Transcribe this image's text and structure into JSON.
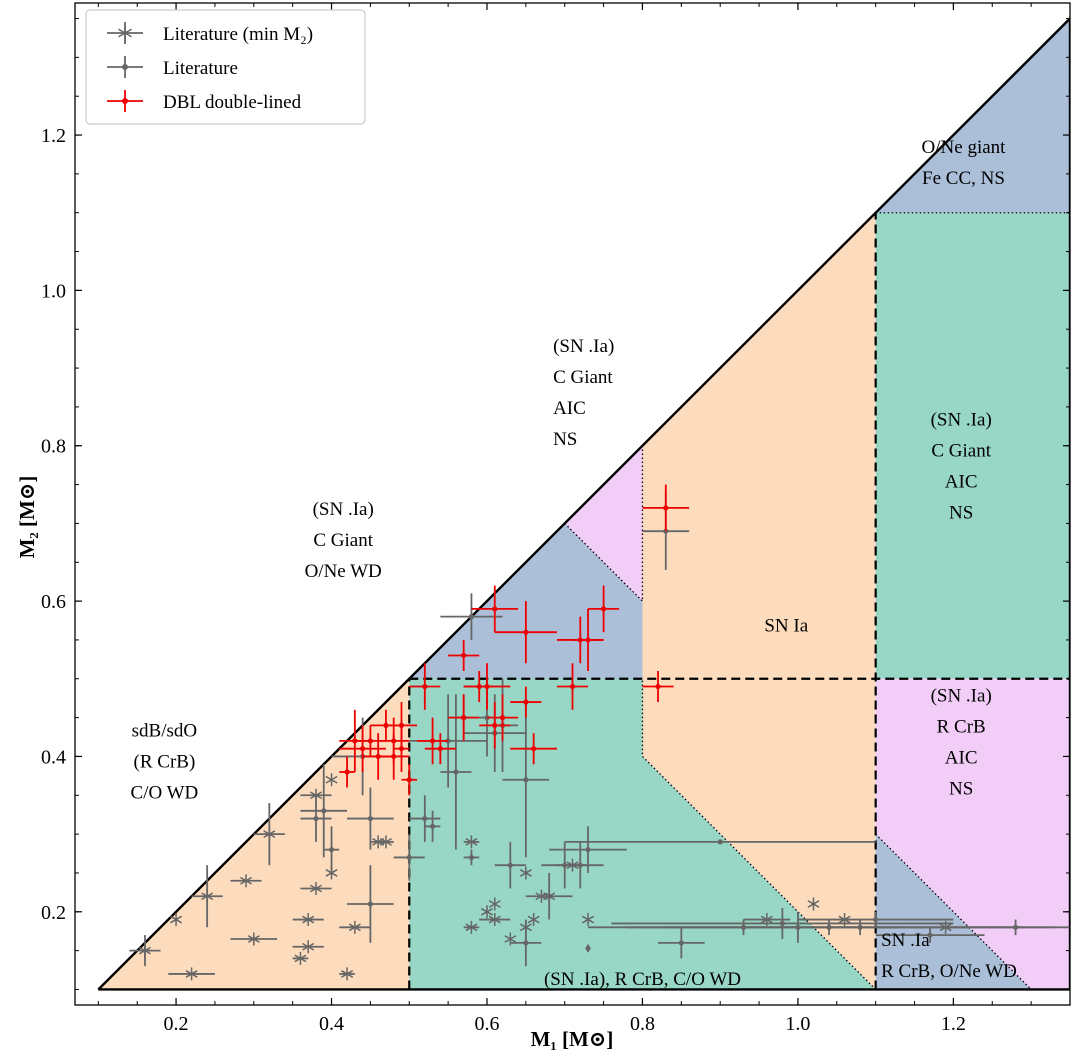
{
  "chart_data": {
    "type": "scatter",
    "xlabel": "M₁ [M⊙]",
    "ylabel": "M₂ [M⊙]",
    "xlim": [
      0.07,
      1.35
    ],
    "ylim": [
      0.08,
      1.37
    ],
    "xticks": [
      0.2,
      0.4,
      0.6,
      0.8,
      1.0,
      1.2
    ],
    "xtick_labels": [
      "0.2",
      "0.4",
      "0.6",
      "0.8",
      "1.0",
      "1.2"
    ],
    "yticks": [
      0.2,
      0.4,
      0.6,
      0.8,
      1.0,
      1.2
    ],
    "ytick_labels": [
      "0.2",
      "0.4",
      "0.6",
      "0.8",
      "1.0",
      "1.2"
    ],
    "grid": false,
    "legend_position": "top-left",
    "legend": [
      {
        "label": "Literature (min M₂)",
        "marker": "star",
        "color": "#666666"
      },
      {
        "label": "Literature",
        "marker": "dot",
        "color": "#666666"
      },
      {
        "label": "DBL double-lined",
        "marker": "dot",
        "color": "#ee0000"
      }
    ],
    "regions": [
      {
        "color": "#fcdcbd",
        "polygon": [
          [
            0.1,
            0.1
          ],
          [
            0.5,
            0.1
          ],
          [
            0.5,
            0.5
          ]
        ]
      },
      {
        "color": "#98d7c6",
        "polygon": [
          [
            0.5,
            0.1
          ],
          [
            1.1,
            0.1
          ],
          [
            0.8,
            0.4
          ],
          [
            0.8,
            0.6
          ],
          [
            0.7,
            0.7
          ],
          [
            0.5,
            0.5
          ]
        ]
      },
      {
        "color": "#fcdcbd",
        "polygon": [
          [
            1.1,
            0.1
          ],
          [
            0.8,
            0.4
          ],
          [
            0.8,
            0.8
          ],
          [
            1.1,
            1.1
          ]
        ]
      },
      {
        "color": "#98d7c6",
        "polygon": [
          [
            1.1,
            0.5
          ],
          [
            1.35,
            0.5
          ],
          [
            1.35,
            1.1
          ],
          [
            1.1,
            1.1
          ]
        ]
      },
      {
        "color": "#abbfd8",
        "polygon": [
          [
            1.1,
            1.1
          ],
          [
            1.35,
            1.1
          ],
          [
            1.35,
            1.35
          ]
        ]
      },
      {
        "color": "#f1cdf7",
        "polygon": [
          [
            1.1,
            0.3
          ],
          [
            1.1,
            0.5
          ],
          [
            1.35,
            0.5
          ],
          [
            1.35,
            0.1
          ],
          [
            1.3,
            0.1
          ]
        ]
      },
      {
        "color": "#abbfd8",
        "polygon": [
          [
            1.1,
            0.1
          ],
          [
            1.1,
            0.3
          ],
          [
            1.3,
            0.1
          ]
        ]
      },
      {
        "color": "#abbfd8",
        "polygon": [
          [
            0.5,
            0.5
          ],
          [
            0.7,
            0.7
          ],
          [
            0.8,
            0.6
          ],
          [
            0.8,
            0.5
          ]
        ]
      },
      {
        "color": "#f1cdf7",
        "polygon": [
          [
            0.7,
            0.7
          ],
          [
            0.8,
            0.8
          ],
          [
            0.8,
            0.6
          ]
        ]
      }
    ],
    "lines": [
      {
        "style": "solid",
        "points": [
          [
            0.1,
            0.1
          ],
          [
            1.35,
            1.35
          ]
        ]
      },
      {
        "style": "solid",
        "points": [
          [
            0.1,
            0.1
          ],
          [
            1.35,
            0.1
          ]
        ]
      },
      {
        "style": "solid",
        "points": [
          [
            1.35,
            0.1
          ],
          [
            1.35,
            1.35
          ]
        ]
      },
      {
        "style": "dashed",
        "points": [
          [
            0.5,
            0.1
          ],
          [
            0.5,
            0.5
          ]
        ]
      },
      {
        "style": "dashed",
        "points": [
          [
            1.1,
            0.1
          ],
          [
            1.1,
            1.1
          ]
        ]
      },
      {
        "style": "dashed",
        "points": [
          [
            0.5,
            0.5
          ],
          [
            1.35,
            0.5
          ]
        ]
      },
      {
        "style": "dotted",
        "points": [
          [
            0.7,
            0.7
          ],
          [
            0.8,
            0.6
          ],
          [
            0.8,
            0.8
          ]
        ]
      },
      {
        "style": "dotted",
        "points": [
          [
            1.1,
            0.1
          ],
          [
            0.8,
            0.4
          ],
          [
            0.8,
            0.5
          ]
        ]
      },
      {
        "style": "dotted",
        "points": [
          [
            1.1,
            1.1
          ],
          [
            1.35,
            1.1
          ]
        ]
      },
      {
        "style": "dotted",
        "points": [
          [
            1.1,
            0.3
          ],
          [
            1.3,
            0.1
          ]
        ]
      }
    ],
    "annotations": [
      {
        "x": 0.185,
        "y": 0.395,
        "align": "middle",
        "lines": [
          "sdB/sdO",
          "(R CrB)",
          "C/O WD"
        ]
      },
      {
        "x": 0.415,
        "y": 0.68,
        "align": "middle",
        "lines": [
          "(SN .Ia)",
          "C Giant",
          "O/Ne WD"
        ]
      },
      {
        "x": 0.685,
        "y": 0.87,
        "align": "start",
        "lines": [
          "(SN .Ia)",
          "C Giant",
          "AIC",
          "NS"
        ]
      },
      {
        "x": 0.985,
        "y": 0.57,
        "align": "middle",
        "lines": [
          "SN Ia"
        ]
      },
      {
        "x": 1.21,
        "y": 0.775,
        "align": "middle",
        "lines": [
          "(SN .Ia)",
          "C Giant",
          "AIC",
          "NS"
        ]
      },
      {
        "x": 1.213,
        "y": 1.166,
        "align": "middle",
        "lines": [
          "O/Ne giant",
          "Fe CC, NS"
        ]
      },
      {
        "x": 1.21,
        "y": 0.42,
        "align": "middle",
        "lines": [
          "(SN .Ia)",
          "R CrB",
          "AIC",
          "NS"
        ]
      },
      {
        "x": 0.8,
        "y": 0.115,
        "align": "middle",
        "lines": [
          "(SN .Ia), R CrB, C/O WD"
        ]
      },
      {
        "x": 1.107,
        "y": 0.145,
        "align": "start",
        "lines": [
          "SN .Ia",
          "R CrB, O/Ne WD"
        ]
      }
    ],
    "series": [
      {
        "name": "Literature (min M₂)",
        "marker": "star",
        "color": "#666666",
        "points": [
          {
            "x": 0.16,
            "y": 0.15,
            "xerr": 0.02,
            "yerr": 0.02
          },
          {
            "x": 0.2,
            "y": 0.19,
            "xerr": 0.0,
            "yerr": 0.0
          },
          {
            "x": 0.22,
            "y": 0.12,
            "xerr": 0.03,
            "yerr": 0.0
          },
          {
            "x": 0.24,
            "y": 0.22,
            "xerr": 0.02,
            "yerr": 0.04
          },
          {
            "x": 0.29,
            "y": 0.24,
            "xerr": 0.02,
            "yerr": 0.0
          },
          {
            "x": 0.3,
            "y": 0.165,
            "xerr": 0.03,
            "yerr": 0.0
          },
          {
            "x": 0.32,
            "y": 0.3,
            "xerr": 0.02,
            "yerr": 0.04
          },
          {
            "x": 0.36,
            "y": 0.14,
            "xerr": 0.01,
            "yerr": 0.0
          },
          {
            "x": 0.37,
            "y": 0.155,
            "xerr": 0.02,
            "yerr": 0.0
          },
          {
            "x": 0.37,
            "y": 0.19,
            "xerr": 0.02,
            "yerr": 0.0
          },
          {
            "x": 0.38,
            "y": 0.35,
            "xerr": 0.02,
            "yerr": 0.0
          },
          {
            "x": 0.38,
            "y": 0.23,
            "xerr": 0.02,
            "yerr": 0.0
          },
          {
            "x": 0.4,
            "y": 0.25,
            "xerr": 0.0,
            "yerr": 0.0
          },
          {
            "x": 0.4,
            "y": 0.37,
            "xerr": 0.0,
            "yerr": 0.0
          },
          {
            "x": 0.42,
            "y": 0.12,
            "xerr": 0.01,
            "yerr": 0.0
          },
          {
            "x": 0.43,
            "y": 0.18,
            "xerr": 0.02,
            "yerr": 0.0
          },
          {
            "x": 0.46,
            "y": 0.29,
            "xerr": 0.01,
            "yerr": 0.0
          },
          {
            "x": 0.47,
            "y": 0.29,
            "xerr": 0.01,
            "yerr": 0.0
          },
          {
            "x": 0.58,
            "y": 0.18,
            "xerr": 0.01,
            "yerr": 0.0
          },
          {
            "x": 0.58,
            "y": 0.29,
            "xerr": 0.01,
            "yerr": 0.0
          },
          {
            "x": 0.6,
            "y": 0.2,
            "xerr": 0.0,
            "yerr": 0.0
          },
          {
            "x": 0.61,
            "y": 0.19,
            "xerr": 0.02,
            "yerr": 0.0
          },
          {
            "x": 0.61,
            "y": 0.21,
            "xerr": 0.0,
            "yerr": 0.0
          },
          {
            "x": 0.63,
            "y": 0.165,
            "xerr": 0.0,
            "yerr": 0.0
          },
          {
            "x": 0.65,
            "y": 0.18,
            "xerr": 0.0,
            "yerr": 0.0
          },
          {
            "x": 0.65,
            "y": 0.25,
            "xerr": 0.0,
            "yerr": 0.0
          },
          {
            "x": 0.66,
            "y": 0.19,
            "xerr": 0.0,
            "yerr": 0.0
          },
          {
            "x": 0.67,
            "y": 0.22,
            "xerr": 0.0,
            "yerr": 0.0
          },
          {
            "x": 0.68,
            "y": 0.22,
            "xerr": 0.0,
            "yerr": 0.0
          },
          {
            "x": 0.71,
            "y": 0.26,
            "xerr": 0.0,
            "yerr": 0.0
          },
          {
            "x": 0.73,
            "y": 0.19,
            "xerr": 0.0,
            "yerr": 0.0
          },
          {
            "x": 0.96,
            "y": 0.19,
            "xerr": 0.03,
            "yerr": 0.0
          },
          {
            "x": 1.02,
            "y": 0.21,
            "xerr": 0.0,
            "yerr": 0.0
          },
          {
            "x": 1.06,
            "y": 0.19,
            "xerr": 0.0,
            "yerr": 0.0
          },
          {
            "x": 1.19,
            "y": 0.18,
            "xerr": 0.0,
            "yerr": 0.0
          }
        ]
      },
      {
        "name": "Literature",
        "marker": "dot",
        "color": "#666666",
        "points": [
          {
            "x": 0.38,
            "y": 0.32,
            "xerr": 0.02,
            "yerr": 0.03
          },
          {
            "x": 0.39,
            "y": 0.33,
            "xerr": 0.03,
            "yerr": 0.06
          },
          {
            "x": 0.4,
            "y": 0.28,
            "xerr": 0.01,
            "yerr": 0.03
          },
          {
            "x": 0.44,
            "y": 0.4,
            "xerr": 0.04,
            "yerr": 0.05
          },
          {
            "x": 0.45,
            "y": 0.32,
            "xerr": 0.03,
            "yerr": 0.04
          },
          {
            "x": 0.45,
            "y": 0.21,
            "xerr": 0.03,
            "yerr": 0.05
          },
          {
            "x": 0.5,
            "y": 0.27,
            "xerr": 0.02,
            "yerr": 0.03
          },
          {
            "x": 0.52,
            "y": 0.32,
            "xerr": 0.02,
            "yerr": 0.03
          },
          {
            "x": 0.53,
            "y": 0.31,
            "xerr": 0.01,
            "yerr": 0.02
          },
          {
            "x": 0.55,
            "y": 0.42,
            "xerr": 0.05,
            "yerr": 0.06
          },
          {
            "x": 0.56,
            "y": 0.38,
            "xerr": 0.02,
            "yerr": 0.1
          },
          {
            "x": 0.57,
            "y": 0.45,
            "xerr": 0.02,
            "yerr": 0.03
          },
          {
            "x": 0.58,
            "y": 0.58,
            "xerr": 0.04,
            "yerr": 0.03
          },
          {
            "x": 0.58,
            "y": 0.27,
            "xerr": 0.01,
            "yerr": 0.01
          },
          {
            "x": 0.6,
            "y": 0.45,
            "xerr": 0.01,
            "yerr": 0.05
          },
          {
            "x": 0.61,
            "y": 0.43,
            "xerr": 0.04,
            "yerr": 0.05
          },
          {
            "x": 0.62,
            "y": 0.44,
            "xerr": 0.02,
            "yerr": 0.06
          },
          {
            "x": 0.63,
            "y": 0.26,
            "xerr": 0.02,
            "yerr": 0.03
          },
          {
            "x": 0.65,
            "y": 0.37,
            "xerr": 0.03,
            "yerr": 0.1
          },
          {
            "x": 0.65,
            "y": 0.16,
            "xerr": 0.02,
            "yerr": 0.03
          },
          {
            "x": 0.68,
            "y": 0.22,
            "xerr": 0.03,
            "yerr": 0.03
          },
          {
            "x": 0.7,
            "y": 0.26,
            "xerr": 0.03,
            "yerr": 0.03
          },
          {
            "x": 0.72,
            "y": 0.26,
            "xerr": 0.03,
            "yerr": 0.03
          },
          {
            "x": 0.73,
            "y": 0.28,
            "xerr": 0.05,
            "yerr": 0.03
          },
          {
            "x": 0.73,
            "y": 0.153,
            "xerr": 0.0,
            "yerr": 0.005
          },
          {
            "x": 0.83,
            "y": 0.69,
            "xerr": 0.03,
            "yerr": 0.05
          },
          {
            "x": 0.85,
            "y": 0.16,
            "xerr": 0.03,
            "yerr": 0.02
          },
          {
            "x": 0.9,
            "y": 0.29,
            "xerr": 0.2,
            "yerr": 0.0
          },
          {
            "x": 0.93,
            "y": 0.18,
            "xerr": 0.2,
            "yerr": 0.01
          },
          {
            "x": 0.98,
            "y": 0.185,
            "xerr": 0.22,
            "yerr": 0.02
          },
          {
            "x": 1.0,
            "y": 0.18,
            "xerr": 0.22,
            "yerr": 0.02
          },
          {
            "x": 1.04,
            "y": 0.18,
            "xerr": 0.25,
            "yerr": 0.01
          },
          {
            "x": 1.08,
            "y": 0.18,
            "xerr": 0.25,
            "yerr": 0.01
          },
          {
            "x": 1.1,
            "y": 0.19,
            "xerr": 0.1,
            "yerr": 0.01
          },
          {
            "x": 1.17,
            "y": 0.17,
            "xerr": 0.07,
            "yerr": 0.01
          },
          {
            "x": 1.28,
            "y": 0.18,
            "xerr": 0.07,
            "yerr": 0.01
          }
        ]
      },
      {
        "name": "DBL double-lined",
        "marker": "dot",
        "color": "#ee0000",
        "points": [
          {
            "x": 0.42,
            "y": 0.38,
            "xerr": 0.01,
            "yerr": 0.02
          },
          {
            "x": 0.43,
            "y": 0.42,
            "xerr": 0.02,
            "yerr": 0.04
          },
          {
            "x": 0.44,
            "y": 0.41,
            "xerr": 0.03,
            "yerr": 0.03
          },
          {
            "x": 0.45,
            "y": 0.42,
            "xerr": 0.02,
            "yerr": 0.02
          },
          {
            "x": 0.46,
            "y": 0.4,
            "xerr": 0.02,
            "yerr": 0.03
          },
          {
            "x": 0.47,
            "y": 0.44,
            "xerr": 0.02,
            "yerr": 0.02
          },
          {
            "x": 0.48,
            "y": 0.4,
            "xerr": 0.02,
            "yerr": 0.03
          },
          {
            "x": 0.48,
            "y": 0.42,
            "xerr": 0.02,
            "yerr": 0.03
          },
          {
            "x": 0.49,
            "y": 0.44,
            "xerr": 0.02,
            "yerr": 0.03
          },
          {
            "x": 0.49,
            "y": 0.41,
            "xerr": 0.01,
            "yerr": 0.03
          },
          {
            "x": 0.5,
            "y": 0.37,
            "xerr": 0.01,
            "yerr": 0.02
          },
          {
            "x": 0.52,
            "y": 0.49,
            "xerr": 0.02,
            "yerr": 0.03
          },
          {
            "x": 0.53,
            "y": 0.42,
            "xerr": 0.02,
            "yerr": 0.03
          },
          {
            "x": 0.54,
            "y": 0.41,
            "xerr": 0.02,
            "yerr": 0.02
          },
          {
            "x": 0.57,
            "y": 0.53,
            "xerr": 0.02,
            "yerr": 0.02
          },
          {
            "x": 0.57,
            "y": 0.45,
            "xerr": 0.02,
            "yerr": 0.03
          },
          {
            "x": 0.59,
            "y": 0.49,
            "xerr": 0.02,
            "yerr": 0.02
          },
          {
            "x": 0.6,
            "y": 0.49,
            "xerr": 0.03,
            "yerr": 0.03
          },
          {
            "x": 0.61,
            "y": 0.44,
            "xerr": 0.02,
            "yerr": 0.03
          },
          {
            "x": 0.61,
            "y": 0.59,
            "xerr": 0.03,
            "yerr": 0.03
          },
          {
            "x": 0.62,
            "y": 0.45,
            "xerr": 0.02,
            "yerr": 0.03
          },
          {
            "x": 0.65,
            "y": 0.56,
            "xerr": 0.04,
            "yerr": 0.04
          },
          {
            "x": 0.65,
            "y": 0.47,
            "xerr": 0.02,
            "yerr": 0.02
          },
          {
            "x": 0.66,
            "y": 0.41,
            "xerr": 0.03,
            "yerr": 0.02
          },
          {
            "x": 0.71,
            "y": 0.49,
            "xerr": 0.02,
            "yerr": 0.03
          },
          {
            "x": 0.72,
            "y": 0.55,
            "xerr": 0.03,
            "yerr": 0.03
          },
          {
            "x": 0.73,
            "y": 0.55,
            "xerr": 0.02,
            "yerr": 0.04
          },
          {
            "x": 0.75,
            "y": 0.59,
            "xerr": 0.02,
            "yerr": 0.03
          },
          {
            "x": 0.82,
            "y": 0.49,
            "xerr": 0.02,
            "yerr": 0.02
          },
          {
            "x": 0.83,
            "y": 0.72,
            "xerr": 0.03,
            "yerr": 0.03
          }
        ]
      }
    ]
  }
}
